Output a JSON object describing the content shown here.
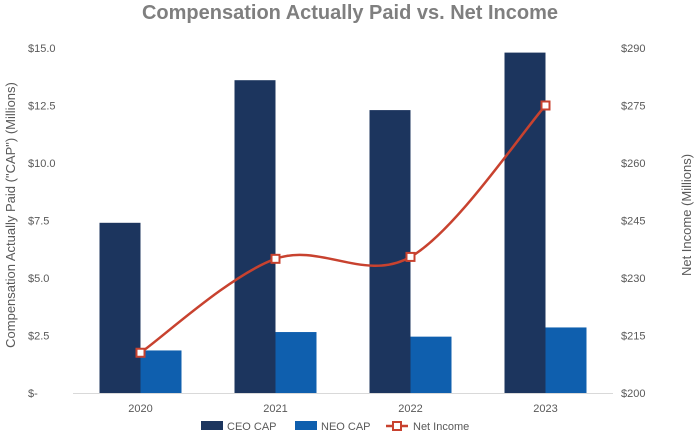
{
  "chart_data": {
    "type": "bar",
    "title": "Compensation Actually Paid vs. Net Income",
    "categories": [
      "2020",
      "2021",
      "2022",
      "2023"
    ],
    "series": [
      {
        "name": "CEO CAP",
        "type": "bar",
        "axis": "left",
        "color": "#1c355e",
        "values": [
          7.4,
          13.6,
          12.3,
          14.8
        ]
      },
      {
        "name": "NEO CAP",
        "type": "bar",
        "axis": "left",
        "color": "#0f5fae",
        "values": [
          1.85,
          2.65,
          2.45,
          2.85
        ]
      },
      {
        "name": "Net Income",
        "type": "line",
        "axis": "right",
        "color": "#c8422f",
        "values": [
          210.5,
          235,
          235.5,
          275
        ]
      }
    ],
    "ylabel": "Compensation Actually Paid (\"CAP\") (Millions)",
    "ylabel_right": "Net Income (Millions)",
    "ylim": [
      0,
      15
    ],
    "ylim_right": [
      200,
      290
    ],
    "yticks": [
      "$-",
      "$2.5",
      "$5.0",
      "$7.5",
      "$10.0",
      "$12.5",
      "$15.0"
    ],
    "yticks_right": [
      "$200",
      "$215",
      "$230",
      "$245",
      "$260",
      "$275",
      "$290"
    ],
    "legend_position": "bottom",
    "grid": false
  }
}
